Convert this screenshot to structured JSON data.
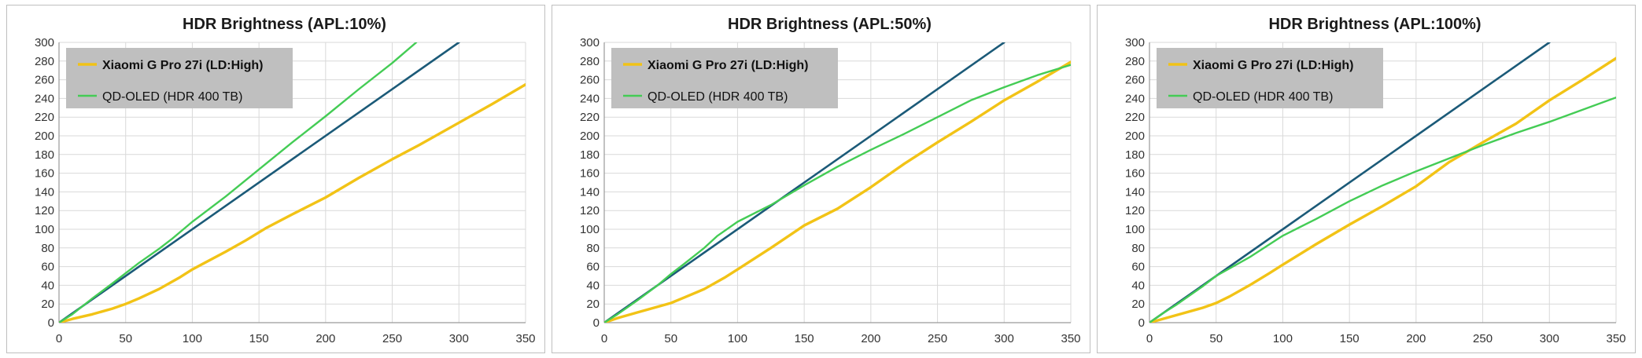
{
  "colors": {
    "xiaomi": "#f2c316",
    "qdoled": "#44cc55",
    "reference": "#1b5a78",
    "grid": "#d9d9d9",
    "legend_bg": "#bfbfbf"
  },
  "chart_data": [
    {
      "type": "line",
      "title": "HDR Brightness (APL:10%)",
      "xlabel": "",
      "ylabel": "",
      "xlim": [
        0,
        350
      ],
      "ylim": [
        0,
        300
      ],
      "xticks": [
        0,
        50,
        100,
        150,
        200,
        250,
        300,
        350
      ],
      "yticks": [
        0,
        20,
        40,
        60,
        80,
        100,
        120,
        140,
        160,
        180,
        200,
        220,
        240,
        260,
        280,
        300
      ],
      "grid": true,
      "legend_position": "top-left",
      "series": [
        {
          "name": "",
          "role": "reference",
          "points": [
            [
              0,
              0
            ],
            [
              300,
              300
            ]
          ]
        },
        {
          "name": "Xiaomi G Pro 27i (LD:High)",
          "role": "xiaomi",
          "bold_label": true,
          "points": [
            [
              0,
              0
            ],
            [
              10,
              4
            ],
            [
              25,
              9
            ],
            [
              40,
              15
            ],
            [
              50,
              20
            ],
            [
              60,
              26
            ],
            [
              75,
              36
            ],
            [
              90,
              48
            ],
            [
              100,
              57
            ],
            [
              125,
              76
            ],
            [
              140,
              88
            ],
            [
              155,
              101
            ],
            [
              175,
              116
            ],
            [
              200,
              134
            ],
            [
              225,
              155
            ],
            [
              250,
              175
            ],
            [
              270,
              190
            ],
            [
              300,
              214
            ],
            [
              325,
              234
            ],
            [
              350,
              255
            ]
          ]
        },
        {
          "name": "QD-OLED (HDR 400 TB)",
          "role": "qdoled",
          "bold_label": false,
          "points": [
            [
              0,
              0
            ],
            [
              10,
              9
            ],
            [
              25,
              26
            ],
            [
              40,
              42
            ],
            [
              50,
              53
            ],
            [
              60,
              64
            ],
            [
              75,
              79
            ],
            [
              85,
              90
            ],
            [
              100,
              108
            ],
            [
              125,
              135
            ],
            [
              150,
              164
            ],
            [
              175,
              193
            ],
            [
              200,
              221
            ],
            [
              225,
              250
            ],
            [
              250,
              278
            ],
            [
              268,
              300
            ]
          ]
        }
      ]
    },
    {
      "type": "line",
      "title": "HDR Brightness (APL:50%)",
      "xlabel": "",
      "ylabel": "",
      "xlim": [
        0,
        350
      ],
      "ylim": [
        0,
        300
      ],
      "xticks": [
        0,
        50,
        100,
        150,
        200,
        250,
        300,
        350
      ],
      "yticks": [
        0,
        20,
        40,
        60,
        80,
        100,
        120,
        140,
        160,
        180,
        200,
        220,
        240,
        260,
        280,
        300
      ],
      "grid": true,
      "legend_position": "top-left",
      "series": [
        {
          "name": "",
          "role": "reference",
          "points": [
            [
              0,
              0
            ],
            [
              300,
              300
            ]
          ]
        },
        {
          "name": "Xiaomi G Pro 27i (LD:High)",
          "role": "xiaomi",
          "bold_label": true,
          "points": [
            [
              0,
              0
            ],
            [
              10,
              5
            ],
            [
              25,
              11
            ],
            [
              40,
              17
            ],
            [
              50,
              21
            ],
            [
              60,
              27
            ],
            [
              75,
              36
            ],
            [
              90,
              48
            ],
            [
              100,
              57
            ],
            [
              125,
              80
            ],
            [
              150,
              104
            ],
            [
              175,
              122
            ],
            [
              200,
              145
            ],
            [
              225,
              170
            ],
            [
              250,
              193
            ],
            [
              275,
              215
            ],
            [
              300,
              238
            ],
            [
              325,
              258
            ],
            [
              350,
              279
            ]
          ]
        },
        {
          "name": "QD-OLED (HDR 400 TB)",
          "role": "qdoled",
          "bold_label": false,
          "points": [
            [
              0,
              0
            ],
            [
              10,
              9
            ],
            [
              25,
              24
            ],
            [
              40,
              40
            ],
            [
              50,
              52
            ],
            [
              60,
              63
            ],
            [
              75,
              80
            ],
            [
              85,
              93
            ],
            [
              100,
              108
            ],
            [
              125,
              126
            ],
            [
              150,
              147
            ],
            [
              175,
              167
            ],
            [
              200,
              185
            ],
            [
              225,
              202
            ],
            [
              250,
              220
            ],
            [
              275,
              238
            ],
            [
              300,
              252
            ],
            [
              325,
              265
            ],
            [
              350,
              276
            ]
          ]
        }
      ]
    },
    {
      "type": "line",
      "title": "HDR Brightness (APL:100%)",
      "xlabel": "",
      "ylabel": "",
      "xlim": [
        0,
        350
      ],
      "ylim": [
        0,
        300
      ],
      "xticks": [
        0,
        50,
        100,
        150,
        200,
        250,
        300,
        350
      ],
      "yticks": [
        0,
        20,
        40,
        60,
        80,
        100,
        120,
        140,
        160,
        180,
        200,
        220,
        240,
        260,
        280,
        300
      ],
      "grid": true,
      "legend_position": "top-left",
      "series": [
        {
          "name": "",
          "role": "reference",
          "points": [
            [
              0,
              0
            ],
            [
              300,
              300
            ]
          ]
        },
        {
          "name": "Xiaomi G Pro 27i (LD:High)",
          "role": "xiaomi",
          "bold_label": true,
          "points": [
            [
              0,
              0
            ],
            [
              10,
              4
            ],
            [
              25,
              10
            ],
            [
              40,
              16
            ],
            [
              50,
              21
            ],
            [
              60,
              28
            ],
            [
              75,
              40
            ],
            [
              90,
              53
            ],
            [
              100,
              62
            ],
            [
              125,
              84
            ],
            [
              150,
              105
            ],
            [
              175,
              125
            ],
            [
              200,
              146
            ],
            [
              225,
              172
            ],
            [
              250,
              193
            ],
            [
              275,
              213
            ],
            [
              300,
              238
            ],
            [
              325,
              260
            ],
            [
              350,
              283
            ]
          ]
        },
        {
          "name": "QD-OLED (HDR 400 TB)",
          "role": "qdoled",
          "bold_label": false,
          "points": [
            [
              0,
              0
            ],
            [
              10,
              10
            ],
            [
              20,
              19
            ],
            [
              30,
              29
            ],
            [
              40,
              39
            ],
            [
              50,
              50
            ],
            [
              60,
              58
            ],
            [
              75,
              70
            ],
            [
              100,
              93
            ],
            [
              125,
              111
            ],
            [
              150,
              130
            ],
            [
              175,
              147
            ],
            [
              200,
              162
            ],
            [
              225,
              176
            ],
            [
              250,
              190
            ],
            [
              275,
              203
            ],
            [
              300,
              215
            ],
            [
              325,
              228
            ],
            [
              350,
              241
            ]
          ]
        }
      ]
    }
  ]
}
